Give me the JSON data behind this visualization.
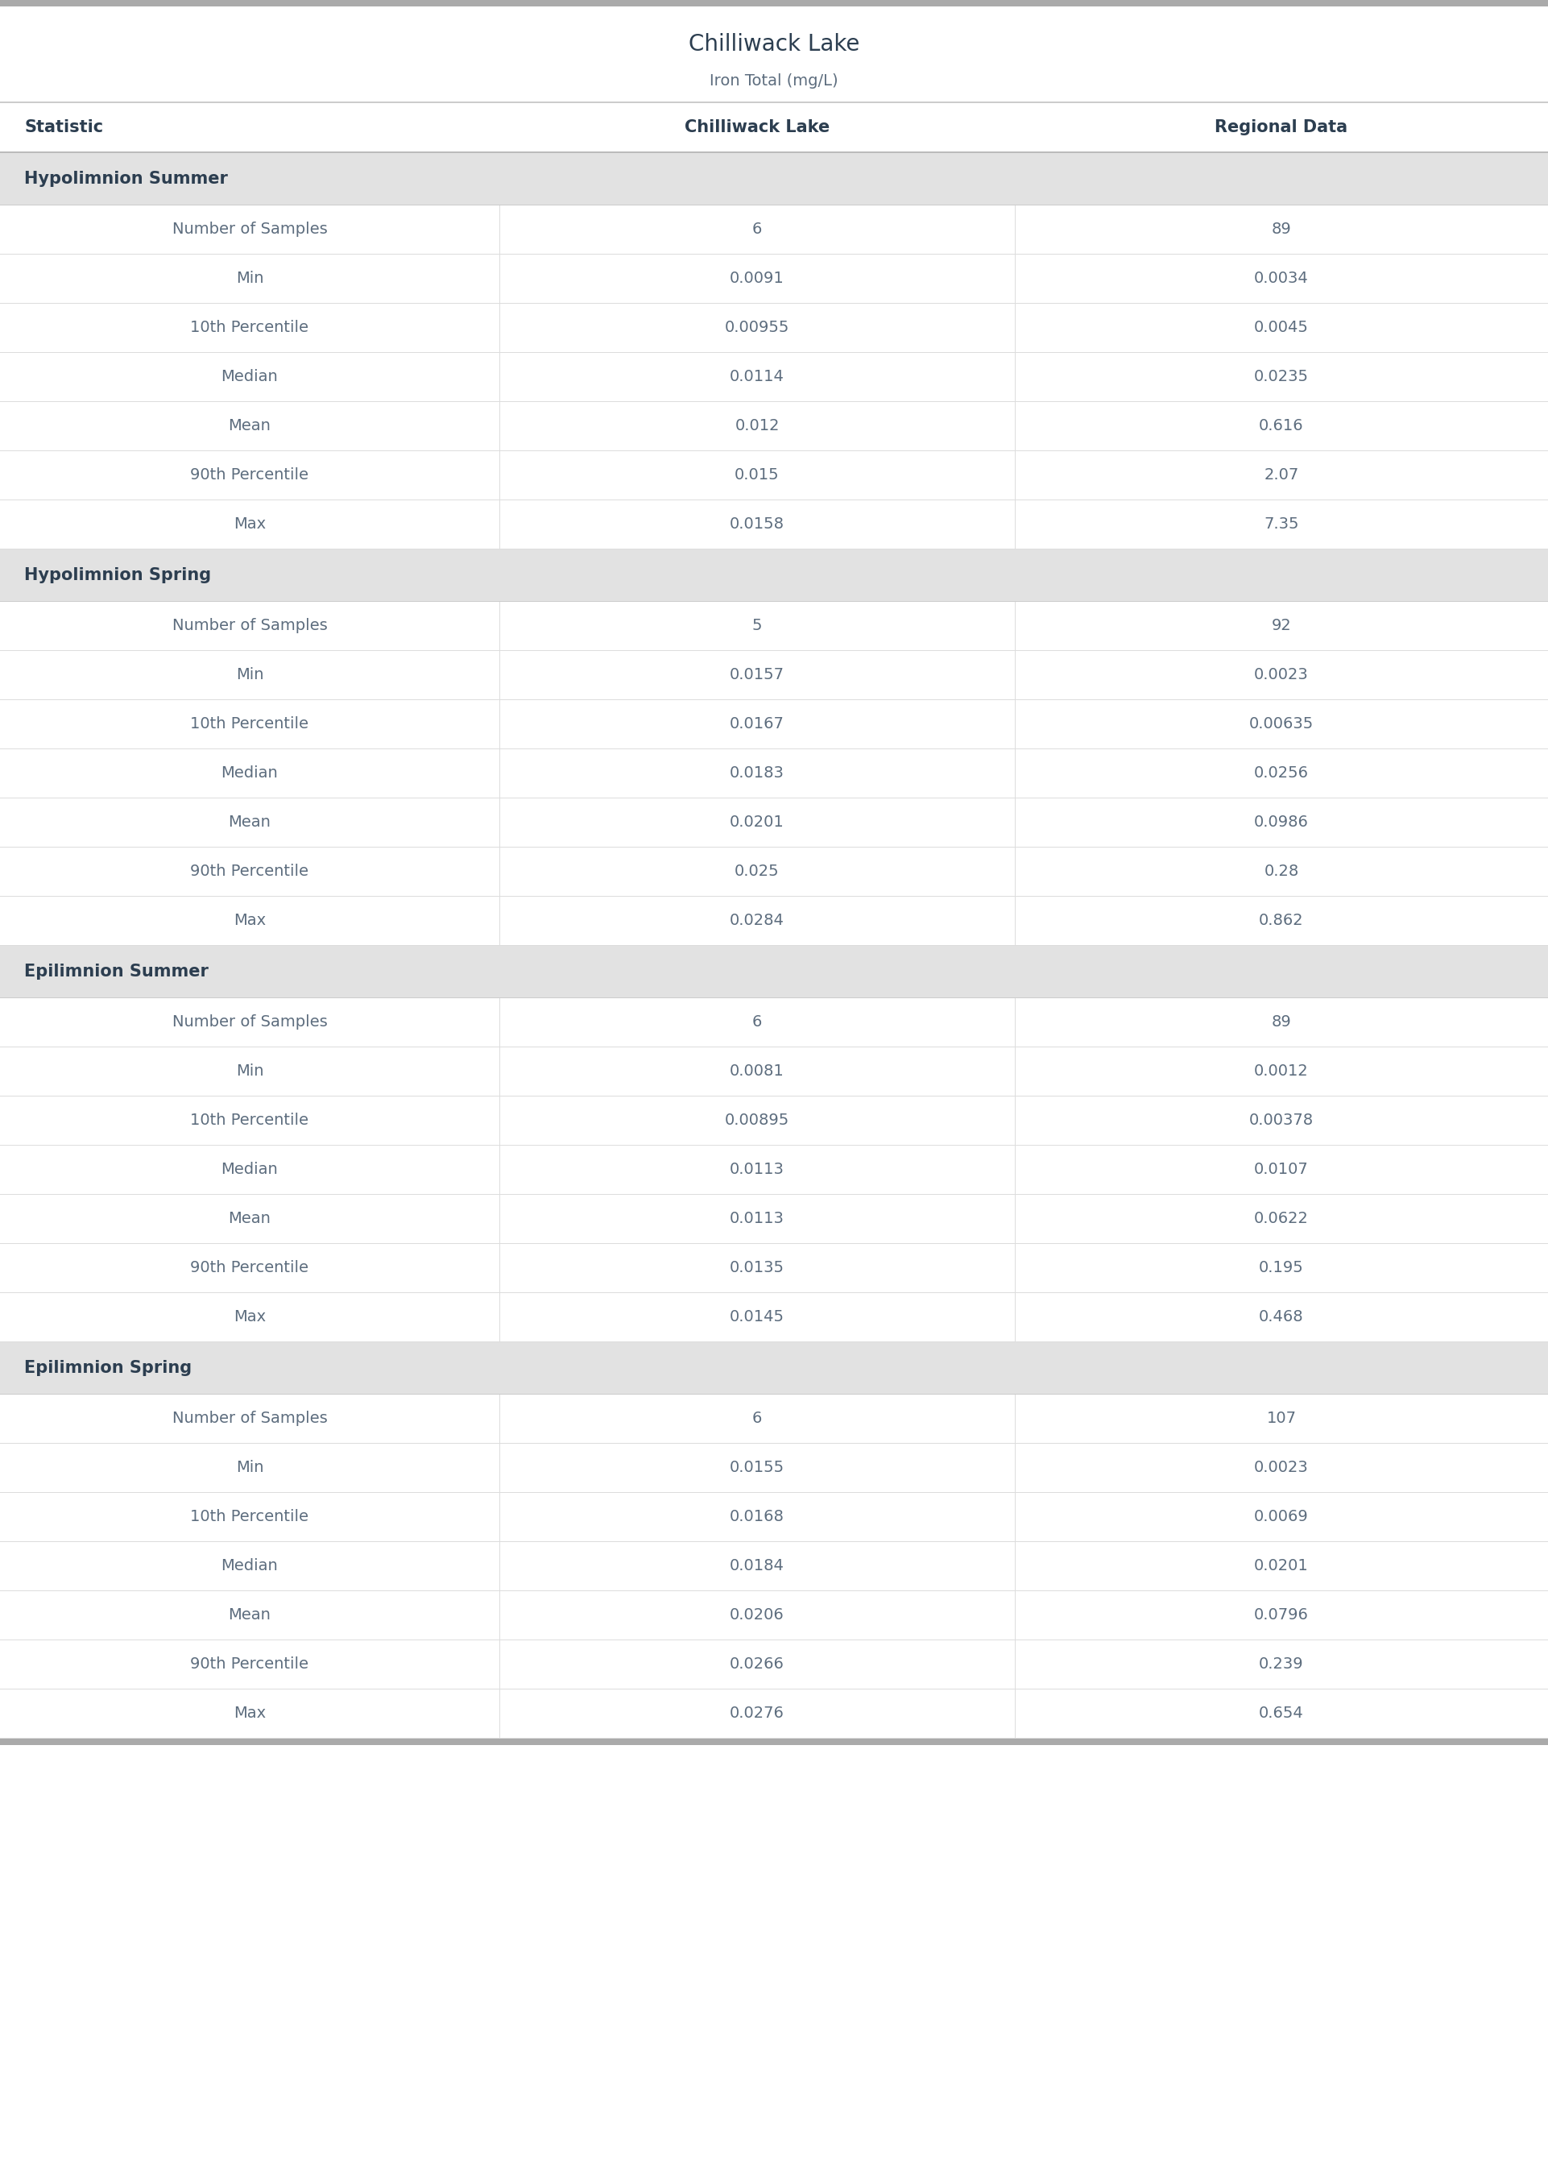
{
  "title": "Chilliwack Lake",
  "subtitle": "Iron Total (mg/L)",
  "col_headers": [
    "Statistic",
    "Chilliwack Lake",
    "Regional Data"
  ],
  "sections": [
    {
      "name": "Hypolimnion Summer",
      "rows": [
        [
          "Number of Samples",
          "6",
          "89"
        ],
        [
          "Min",
          "0.0091",
          "0.0034"
        ],
        [
          "10th Percentile",
          "0.00955",
          "0.0045"
        ],
        [
          "Median",
          "0.0114",
          "0.0235"
        ],
        [
          "Mean",
          "0.012",
          "0.616"
        ],
        [
          "90th Percentile",
          "0.015",
          "2.07"
        ],
        [
          "Max",
          "0.0158",
          "7.35"
        ]
      ]
    },
    {
      "name": "Hypolimnion Spring",
      "rows": [
        [
          "Number of Samples",
          "5",
          "92"
        ],
        [
          "Min",
          "0.0157",
          "0.0023"
        ],
        [
          "10th Percentile",
          "0.0167",
          "0.00635"
        ],
        [
          "Median",
          "0.0183",
          "0.0256"
        ],
        [
          "Mean",
          "0.0201",
          "0.0986"
        ],
        [
          "90th Percentile",
          "0.025",
          "0.28"
        ],
        [
          "Max",
          "0.0284",
          "0.862"
        ]
      ]
    },
    {
      "name": "Epilimnion Summer",
      "rows": [
        [
          "Number of Samples",
          "6",
          "89"
        ],
        [
          "Min",
          "0.0081",
          "0.0012"
        ],
        [
          "10th Percentile",
          "0.00895",
          "0.00378"
        ],
        [
          "Median",
          "0.0113",
          "0.0107"
        ],
        [
          "Mean",
          "0.0113",
          "0.0622"
        ],
        [
          "90th Percentile",
          "0.0135",
          "0.195"
        ],
        [
          "Max",
          "0.0145",
          "0.468"
        ]
      ]
    },
    {
      "name": "Epilimnion Spring",
      "rows": [
        [
          "Number of Samples",
          "6",
          "107"
        ],
        [
          "Min",
          "0.0155",
          "0.0023"
        ],
        [
          "10th Percentile",
          "0.0168",
          "0.0069"
        ],
        [
          "Median",
          "0.0184",
          "0.0201"
        ],
        [
          "Mean",
          "0.0206",
          "0.0796"
        ],
        [
          "90th Percentile",
          "0.0266",
          "0.239"
        ],
        [
          "Max",
          "0.0276",
          "0.654"
        ]
      ]
    }
  ],
  "title_color": "#2c3e50",
  "subtitle_color": "#5d6d7e",
  "header_text_color": "#2c3e50",
  "section_bg_color": "#e2e2e2",
  "section_text_color": "#2c3e50",
  "row_bg_color": "#ffffff",
  "data_text_color": "#5d6d7e",
  "stat_text_color": "#5d6d7e",
  "border_color": "#cccccc",
  "top_border_color": "#aaaaaa",
  "bottom_border_color": "#cccccc",
  "title_fontsize": 20,
  "subtitle_fontsize": 14,
  "header_fontsize": 15,
  "section_fontsize": 15,
  "data_fontsize": 14
}
